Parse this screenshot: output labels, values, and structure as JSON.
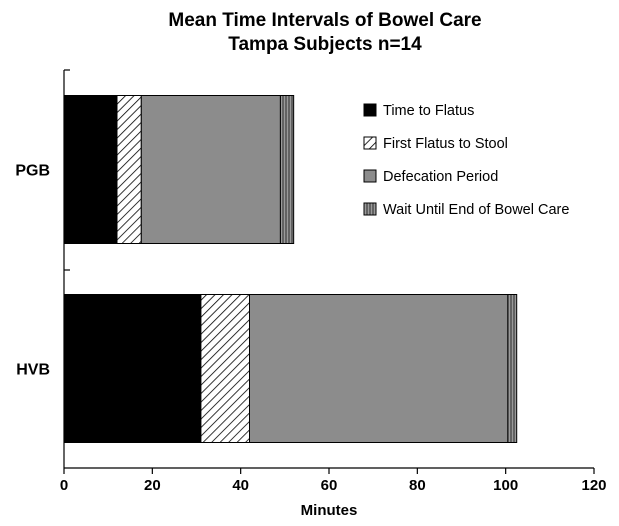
{
  "chart_data": {
    "type": "bar",
    "orientation": "horizontal",
    "stacked": true,
    "title": "Mean Time Intervals of Bowel Care",
    "subtitle": "Tampa Subjects n=14",
    "xlabel": "Minutes",
    "ylabel": "",
    "xlim": [
      0,
      120
    ],
    "xticks": [
      0,
      20,
      40,
      60,
      80,
      100,
      120
    ],
    "categories": [
      "PGB",
      "HVB"
    ],
    "series": [
      {
        "name": "Time to Flatus",
        "values": [
          12,
          31
        ],
        "color": "#000000",
        "pattern": "solid"
      },
      {
        "name": "First Flatus to Stool",
        "values": [
          5.5,
          11
        ],
        "color": "#ffffff",
        "pattern": "diagonal-hatch"
      },
      {
        "name": "Defecation Period",
        "values": [
          31.5,
          58.5
        ],
        "color": "#8c8c8c",
        "pattern": "solid"
      },
      {
        "name": "Wait Until End of Bowel Care",
        "values": [
          3,
          2
        ],
        "color": "#6a6a6a",
        "pattern": "vertical-stripes"
      }
    ],
    "legend_position": "top-right",
    "grid": false
  }
}
